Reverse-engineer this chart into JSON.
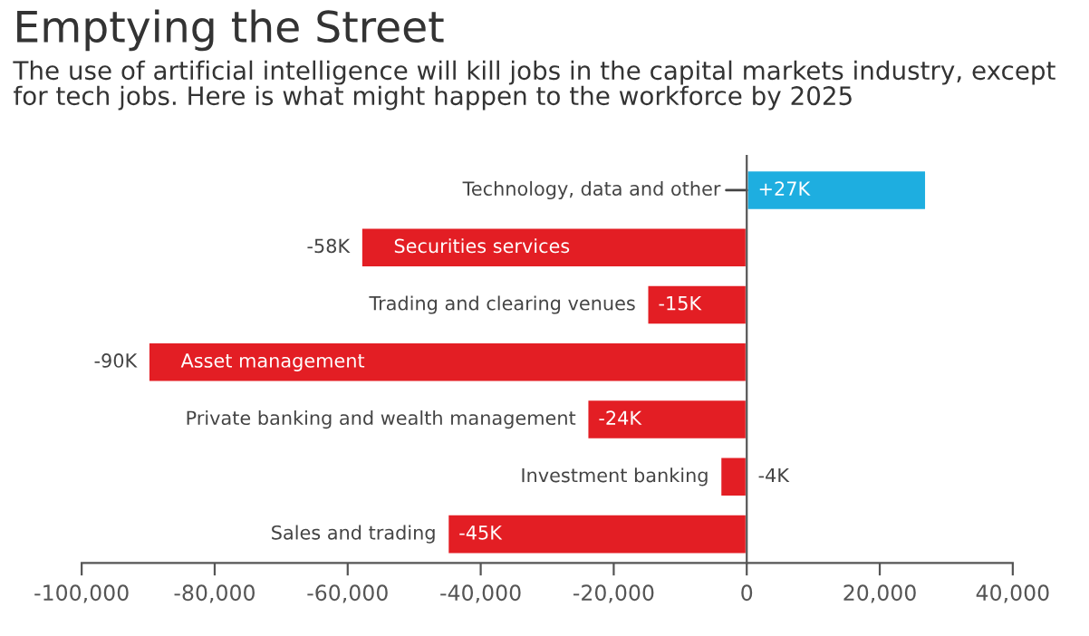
{
  "chart_data": {
    "type": "bar",
    "orientation": "horizontal",
    "title": "Emptying the Street",
    "subtitle": "The use of artificial intelligence will kill jobs in the capital markets industry, except for tech jobs. Here is what might happen to the workforce by 2025",
    "categories": [
      "Technology, data and other",
      "Securities services",
      "Trading and clearing venues",
      "Asset management",
      "Private banking and wealth management",
      "Investment banking",
      "Sales and trading"
    ],
    "values": [
      27000,
      -58000,
      -15000,
      -90000,
      -24000,
      -4000,
      -45000
    ],
    "colors": [
      "#1eaee0",
      "#e31e24",
      "#e31e24",
      "#e31e24",
      "#e31e24",
      "#e31e24",
      "#e31e24"
    ],
    "value_labels": [
      "+27K",
      "-58K",
      "-15K",
      "-90K",
      "-24K",
      "-4K",
      "-45K"
    ],
    "xlim": [
      -100000,
      40000
    ],
    "xticks": [
      {
        "value": -100000,
        "label": "-100,000"
      },
      {
        "value": -80000,
        "label": "-80,000"
      },
      {
        "value": -60000,
        "label": "-60,000"
      },
      {
        "value": -40000,
        "label": "-40,000"
      },
      {
        "value": -20000,
        "label": "-20,000"
      },
      0,
      {
        "value": 20000,
        "label": "20,000"
      },
      {
        "value": 40000,
        "label": "40,000"
      }
    ],
    "legend": false
  }
}
